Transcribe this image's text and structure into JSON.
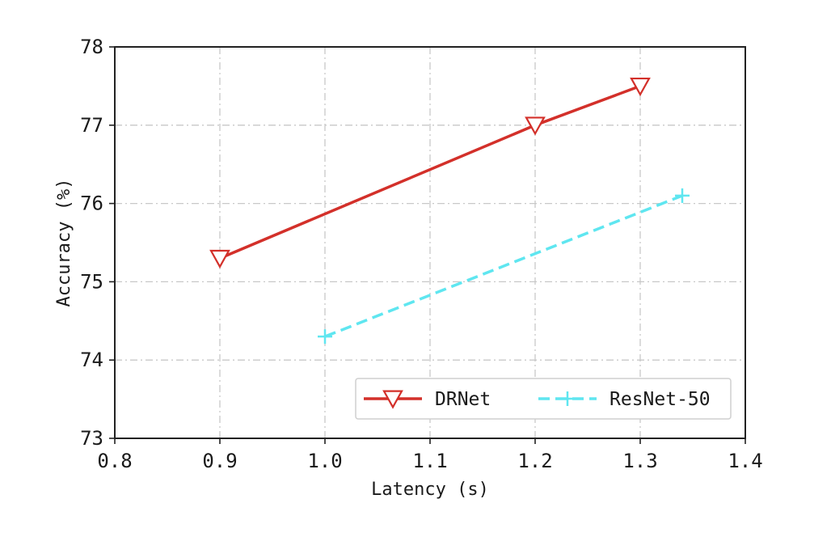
{
  "chart_data": {
    "type": "line",
    "title": "",
    "xlabel": "Latency (s)",
    "ylabel": "Accuracy (%)",
    "xlim": [
      0.8,
      1.4
    ],
    "ylim": [
      73,
      78
    ],
    "x_ticks": [
      "0.8",
      "0.9",
      "1.0",
      "1.1",
      "1.2",
      "1.3",
      "1.4"
    ],
    "y_ticks": [
      "73",
      "74",
      "75",
      "76",
      "77",
      "78"
    ],
    "grid": true,
    "legend_position": "lower-right",
    "series": [
      {
        "name": "DRNet",
        "color": "#d3302a",
        "line_style": "solid",
        "marker": "triangle-down-open",
        "x": [
          0.9,
          1.2,
          1.3
        ],
        "y": [
          75.3,
          77.0,
          77.5
        ]
      },
      {
        "name": "ResNet-50",
        "color": "#5fe6f0",
        "line_style": "dashed",
        "marker": "plus",
        "x": [
          1.0,
          1.34
        ],
        "y": [
          74.3,
          76.1
        ]
      }
    ]
  }
}
